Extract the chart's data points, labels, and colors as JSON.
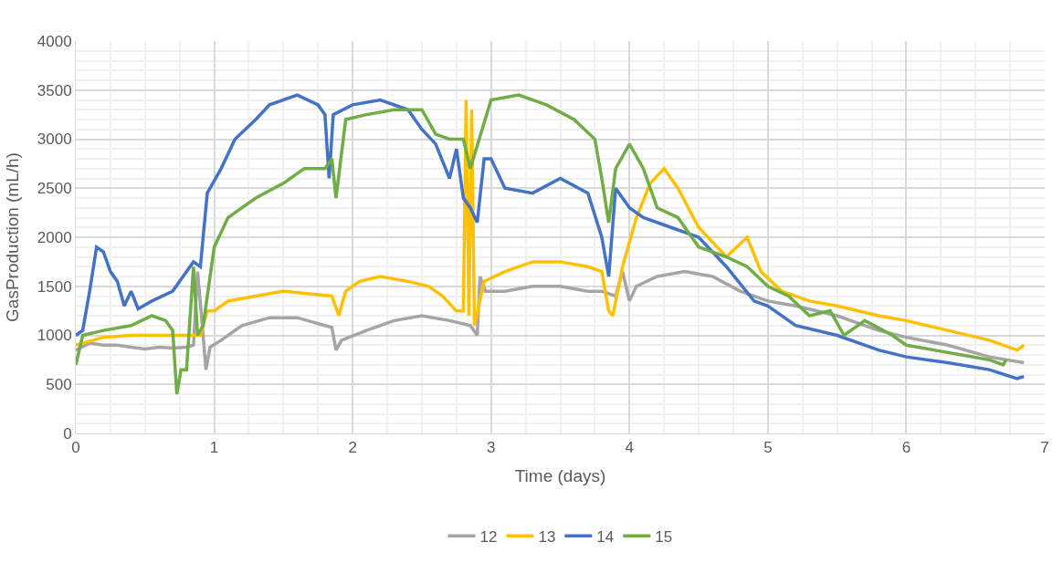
{
  "chart_data": {
    "type": "line",
    "xlabel": "Time (days)",
    "ylabel": "GasProduction (mL/h)",
    "xlim": [
      0,
      7
    ],
    "xticks": [
      0,
      1,
      2,
      3,
      4,
      5,
      6,
      7
    ],
    "ylim": [
      0,
      4000
    ],
    "yticks": [
      0,
      500,
      1000,
      1500,
      2000,
      2500,
      3000,
      3500,
      4000
    ],
    "grid": true,
    "legend": "bottom",
    "marker": "none",
    "line_style": "solid",
    "series": [
      {
        "name": "12",
        "color": "#a5a5a5",
        "x": [
          0,
          0.1,
          0.2,
          0.3,
          0.4,
          0.5,
          0.6,
          0.7,
          0.8,
          0.85,
          0.88,
          0.92,
          0.94,
          0.97,
          1.05,
          1.2,
          1.4,
          1.6,
          1.8,
          1.85,
          1.88,
          1.92,
          2.1,
          2.3,
          2.5,
          2.7,
          2.85,
          2.9,
          2.92,
          2.96,
          3.1,
          3.3,
          3.5,
          3.7,
          3.8,
          3.9,
          3.95,
          4.0,
          4.05,
          4.2,
          4.4,
          4.6,
          4.8,
          5.0,
          5.2,
          5.5,
          5.8,
          6.0,
          6.3,
          6.6,
          6.85
        ],
        "values": [
          850,
          920,
          900,
          900,
          880,
          860,
          880,
          870,
          880,
          900,
          1650,
          1000,
          650,
          880,
          950,
          1100,
          1180,
          1180,
          1100,
          1080,
          850,
          950,
          1050,
          1150,
          1200,
          1150,
          1100,
          1000,
          1600,
          1450,
          1450,
          1500,
          1500,
          1450,
          1450,
          1400,
          1650,
          1350,
          1500,
          1600,
          1650,
          1600,
          1450,
          1350,
          1300,
          1200,
          1050,
          980,
          900,
          780,
          720
        ]
      },
      {
        "name": "13",
        "color": "#ffc000",
        "x": [
          0,
          0.2,
          0.4,
          0.6,
          0.8,
          0.9,
          0.95,
          1.0,
          1.1,
          1.3,
          1.5,
          1.7,
          1.85,
          1.9,
          1.95,
          2.05,
          2.2,
          2.4,
          2.55,
          2.65,
          2.75,
          2.8,
          2.82,
          2.84,
          2.86,
          2.88,
          2.95,
          3.1,
          3.3,
          3.5,
          3.7,
          3.8,
          3.85,
          3.88,
          3.95,
          4.05,
          4.15,
          4.25,
          4.35,
          4.5,
          4.7,
          4.85,
          4.95,
          5.1,
          5.3,
          5.5,
          5.8,
          6.0,
          6.3,
          6.6,
          6.8,
          6.85
        ],
        "values": [
          900,
          980,
          1000,
          1000,
          1000,
          1000,
          1250,
          1250,
          1350,
          1400,
          1450,
          1420,
          1400,
          1200,
          1450,
          1550,
          1600,
          1550,
          1500,
          1400,
          1250,
          1250,
          3400,
          1200,
          3300,
          1100,
          1550,
          1650,
          1750,
          1750,
          1700,
          1650,
          1250,
          1200,
          1700,
          2200,
          2550,
          2700,
          2500,
          2100,
          1800,
          2000,
          1650,
          1450,
          1350,
          1300,
          1200,
          1150,
          1050,
          950,
          850,
          900
        ]
      },
      {
        "name": "14",
        "color": "#4472c4",
        "x": [
          0,
          0.05,
          0.1,
          0.15,
          0.2,
          0.25,
          0.3,
          0.35,
          0.4,
          0.45,
          0.55,
          0.7,
          0.85,
          0.9,
          0.95,
          1.05,
          1.15,
          1.3,
          1.4,
          1.6,
          1.75,
          1.8,
          1.83,
          1.86,
          2.0,
          2.2,
          2.4,
          2.5,
          2.6,
          2.7,
          2.75,
          2.8,
          2.85,
          2.9,
          2.95,
          3.0,
          3.1,
          3.3,
          3.5,
          3.7,
          3.8,
          3.85,
          3.9,
          4.0,
          4.1,
          4.3,
          4.5,
          4.7,
          4.9,
          5.0,
          5.2,
          5.5,
          5.8,
          6.0,
          6.3,
          6.6,
          6.8,
          6.85
        ],
        "values": [
          1000,
          1050,
          1450,
          1900,
          1850,
          1650,
          1550,
          1300,
          1450,
          1270,
          1350,
          1450,
          1750,
          1700,
          2450,
          2700,
          3000,
          3200,
          3350,
          3450,
          3350,
          3250,
          2600,
          3250,
          3350,
          3400,
          3300,
          3100,
          2950,
          2600,
          2900,
          2400,
          2300,
          2150,
          2800,
          2800,
          2500,
          2450,
          2600,
          2450,
          2000,
          1600,
          2500,
          2300,
          2200,
          2100,
          2000,
          1700,
          1350,
          1300,
          1100,
          1000,
          850,
          780,
          720,
          650,
          560,
          580
        ]
      },
      {
        "name": "15",
        "color": "#70ad47",
        "x": [
          0,
          0.05,
          0.2,
          0.4,
          0.55,
          0.65,
          0.7,
          0.73,
          0.76,
          0.8,
          0.85,
          0.88,
          0.92,
          1.0,
          1.1,
          1.3,
          1.5,
          1.65,
          1.8,
          1.85,
          1.88,
          1.95,
          2.1,
          2.3,
          2.5,
          2.6,
          2.7,
          2.8,
          2.85,
          3.0,
          3.2,
          3.4,
          3.6,
          3.75,
          3.8,
          3.85,
          3.9,
          4.0,
          4.1,
          4.2,
          4.35,
          4.5,
          4.7,
          4.85,
          5.0,
          5.15,
          5.3,
          5.45,
          5.55,
          5.7,
          5.9,
          6.0,
          6.2,
          6.4,
          6.6,
          6.7,
          6.72
        ],
        "values": [
          700,
          1000,
          1050,
          1100,
          1200,
          1150,
          1050,
          400,
          650,
          650,
          1700,
          1000,
          1100,
          1900,
          2200,
          2400,
          2550,
          2700,
          2700,
          2800,
          2400,
          3200,
          3250,
          3300,
          3300,
          3050,
          3000,
          3000,
          2700,
          3400,
          3450,
          3350,
          3200,
          3000,
          2600,
          2150,
          2700,
          2950,
          2700,
          2300,
          2200,
          1900,
          1800,
          1700,
          1500,
          1400,
          1200,
          1250,
          1000,
          1150,
          1000,
          900,
          850,
          800,
          750,
          700,
          750
        ]
      }
    ]
  }
}
